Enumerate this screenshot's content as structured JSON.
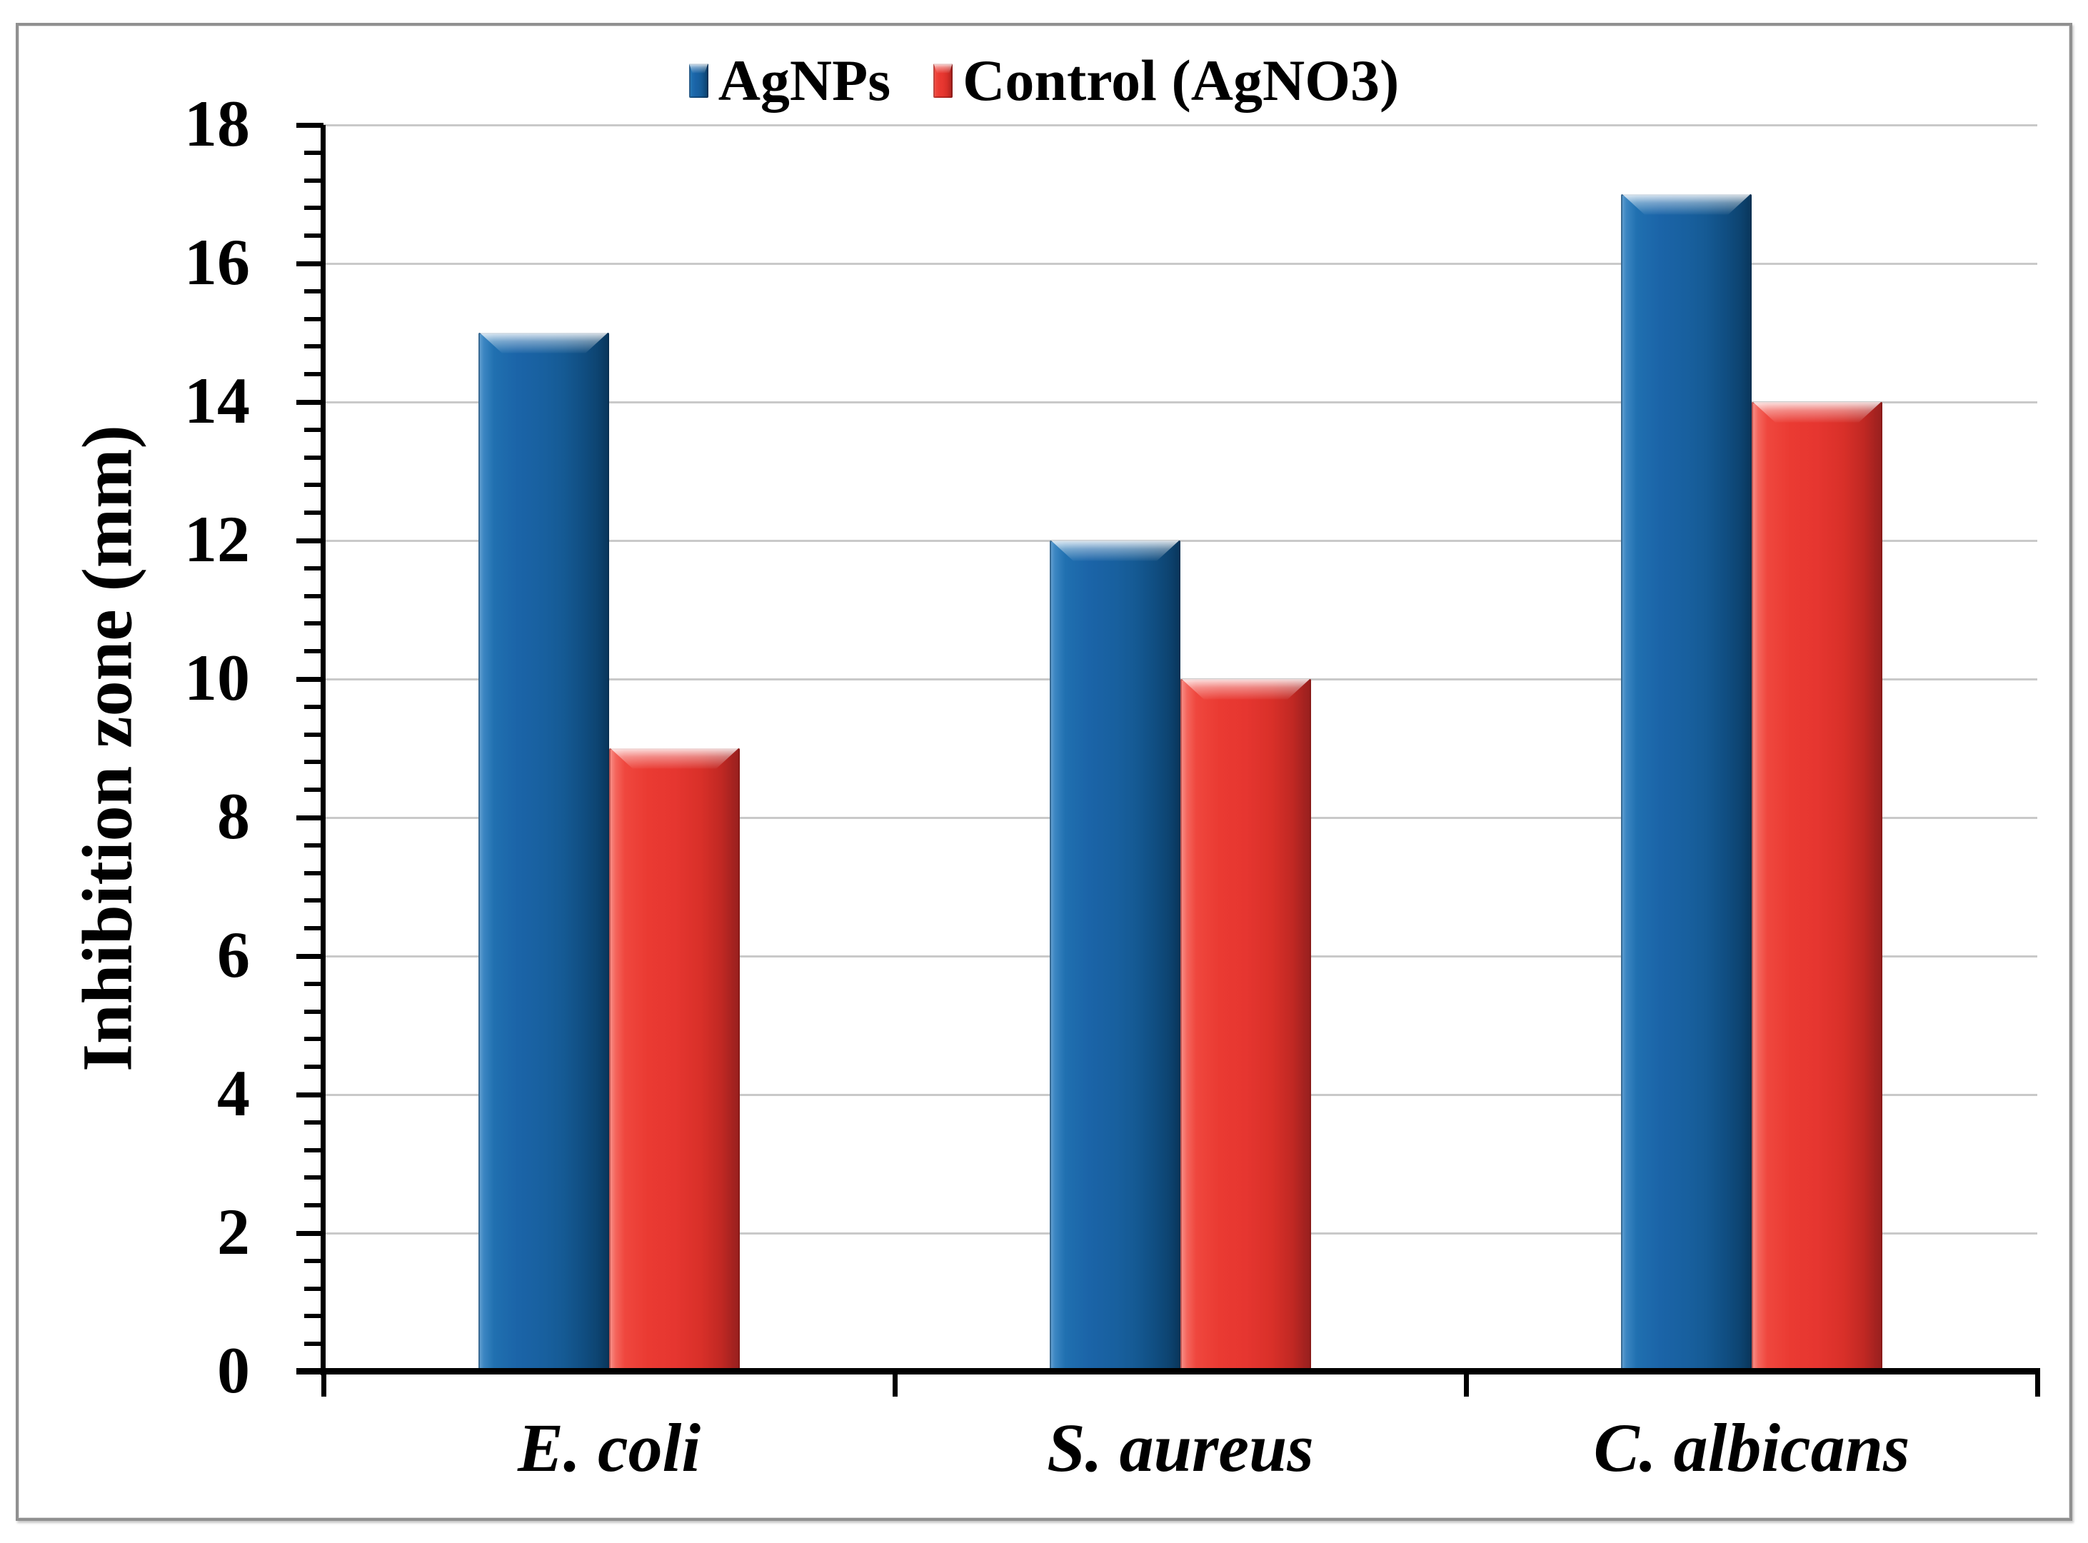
{
  "chart_data": {
    "type": "bar",
    "title": "",
    "categories": [
      "E. coli",
      "S. aureus",
      "C. albicans"
    ],
    "series": [
      {
        "name": "AgNPs",
        "color": "#1b64a8",
        "values": [
          15,
          12,
          17
        ]
      },
      {
        "name": "Control (AgNO3)",
        "color": "#e93a32",
        "values": [
          9,
          10,
          14
        ]
      }
    ],
    "xlabel": "",
    "ylabel": "Inhibition zone (mm)",
    "ylim": [
      0,
      18
    ],
    "ytick_step": 2,
    "y_tick_labels": [
      "0",
      "2",
      "4",
      "6",
      "8",
      "10",
      "12",
      "14",
      "16",
      "18"
    ],
    "minor_ticks_between_majors": 4,
    "grid": "horizontal-major",
    "gridline_color": "#c9c9c9",
    "legend_position": "top-center",
    "bar_style": "3d-bevel"
  }
}
